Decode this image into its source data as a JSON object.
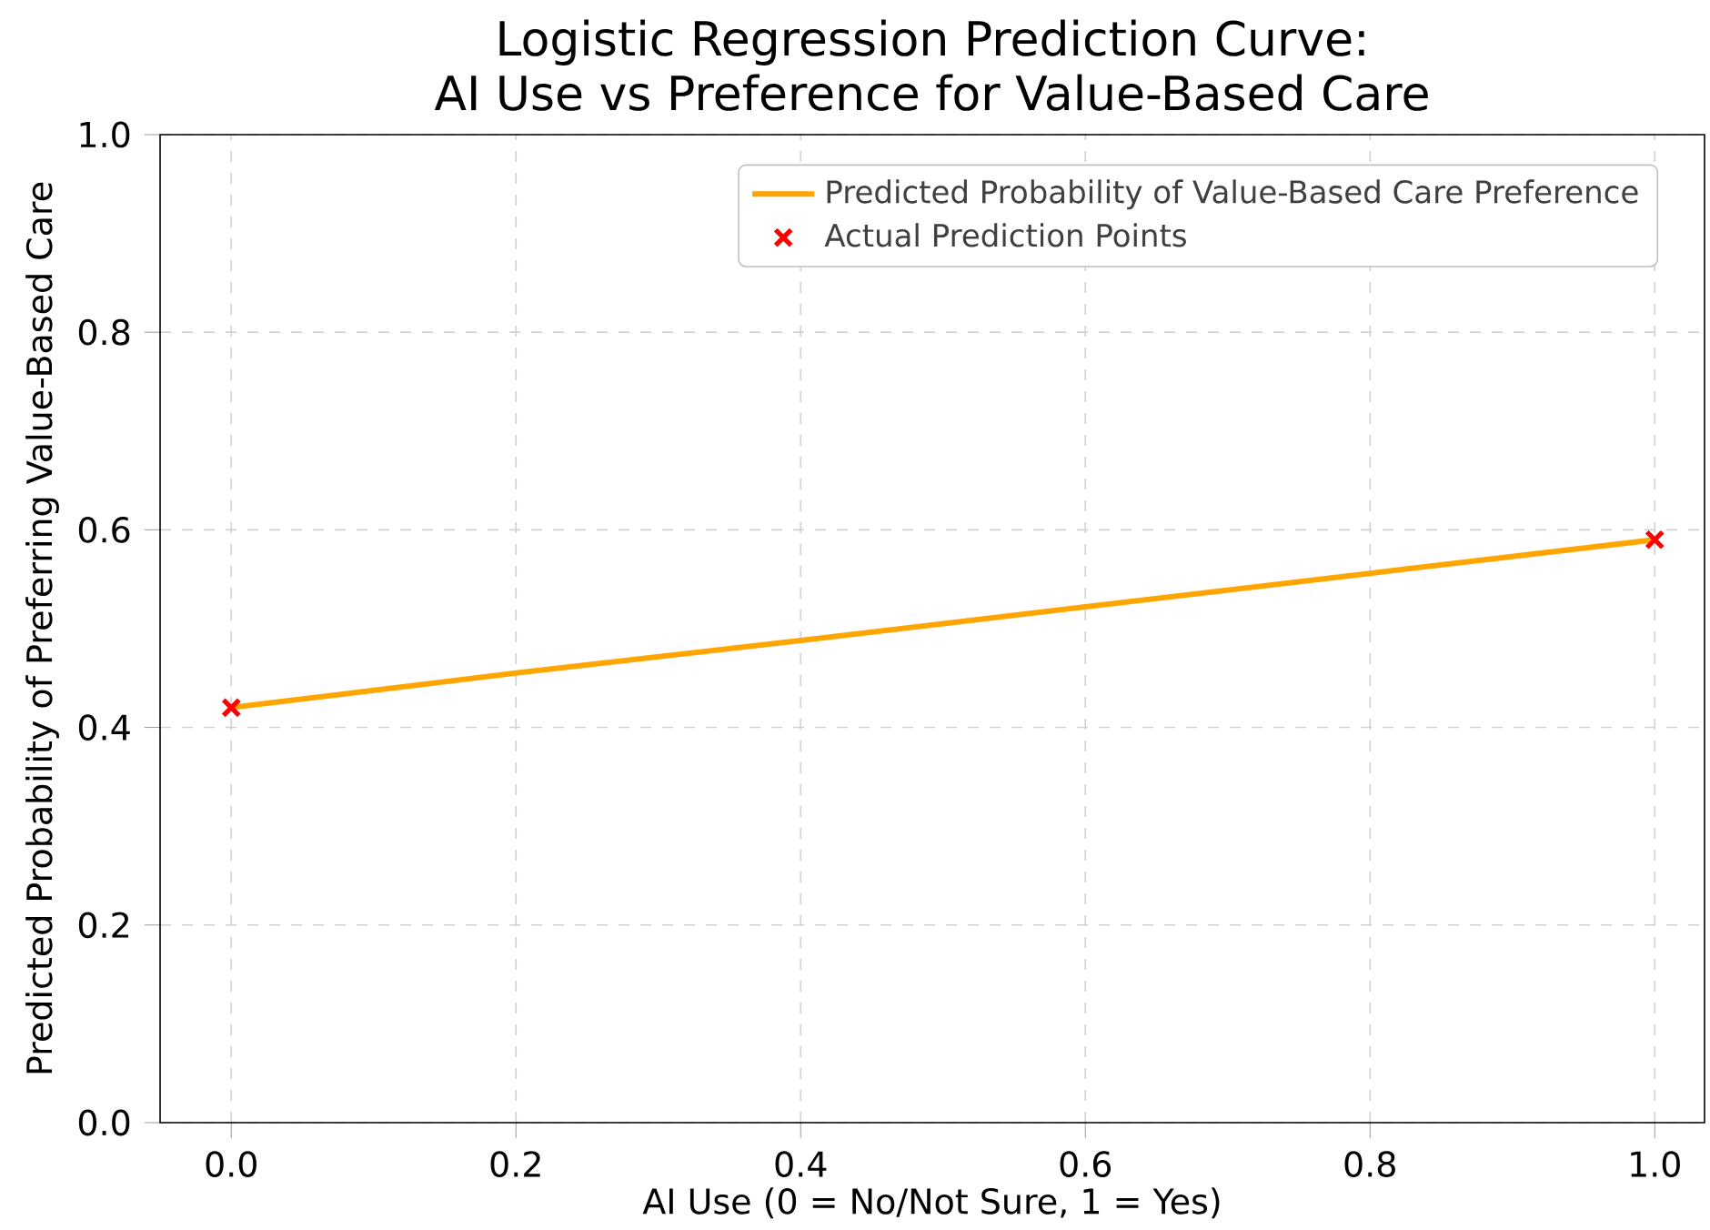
{
  "chart_data": {
    "type": "line",
    "title": "Logistic Regression Prediction Curve:\nAI Use vs Preference for Value-Based Care",
    "xlabel": "AI Use (0 = No/Not Sure, 1 = Yes)",
    "ylabel": "Predicted Probability of Preferring Value-Based Care",
    "xlim": [
      -0.05,
      1.035
    ],
    "ylim": [
      0,
      1
    ],
    "xticks": [
      {
        "value": 0,
        "label": "0.0"
      },
      0.2,
      0.4,
      0.6,
      0.8,
      {
        "value": 1,
        "label": "1.0"
      }
    ],
    "yticks": [
      {
        "value": 0,
        "label": "0.0"
      },
      0.2,
      0.4,
      0.6,
      0.8,
      {
        "value": 1,
        "label": "1.0"
      }
    ],
    "series": [
      {
        "name": "Predicted Probability of Value-Based Care Preference",
        "type": "line",
        "color": "#ffa500",
        "x": [
          0,
          0.2,
          0.4,
          0.6,
          0.8,
          1
        ],
        "values": [
          0.42,
          0.455,
          0.488,
          0.522,
          0.556,
          0.59
        ],
        "line_style": "solid"
      },
      {
        "name": "Actual Prediction Points",
        "type": "scatter",
        "color": "#ff0000",
        "marker": "cross",
        "x": [
          0,
          1
        ],
        "values": [
          0.42,
          0.59
        ]
      }
    ],
    "grid": true,
    "legend": "top right"
  }
}
